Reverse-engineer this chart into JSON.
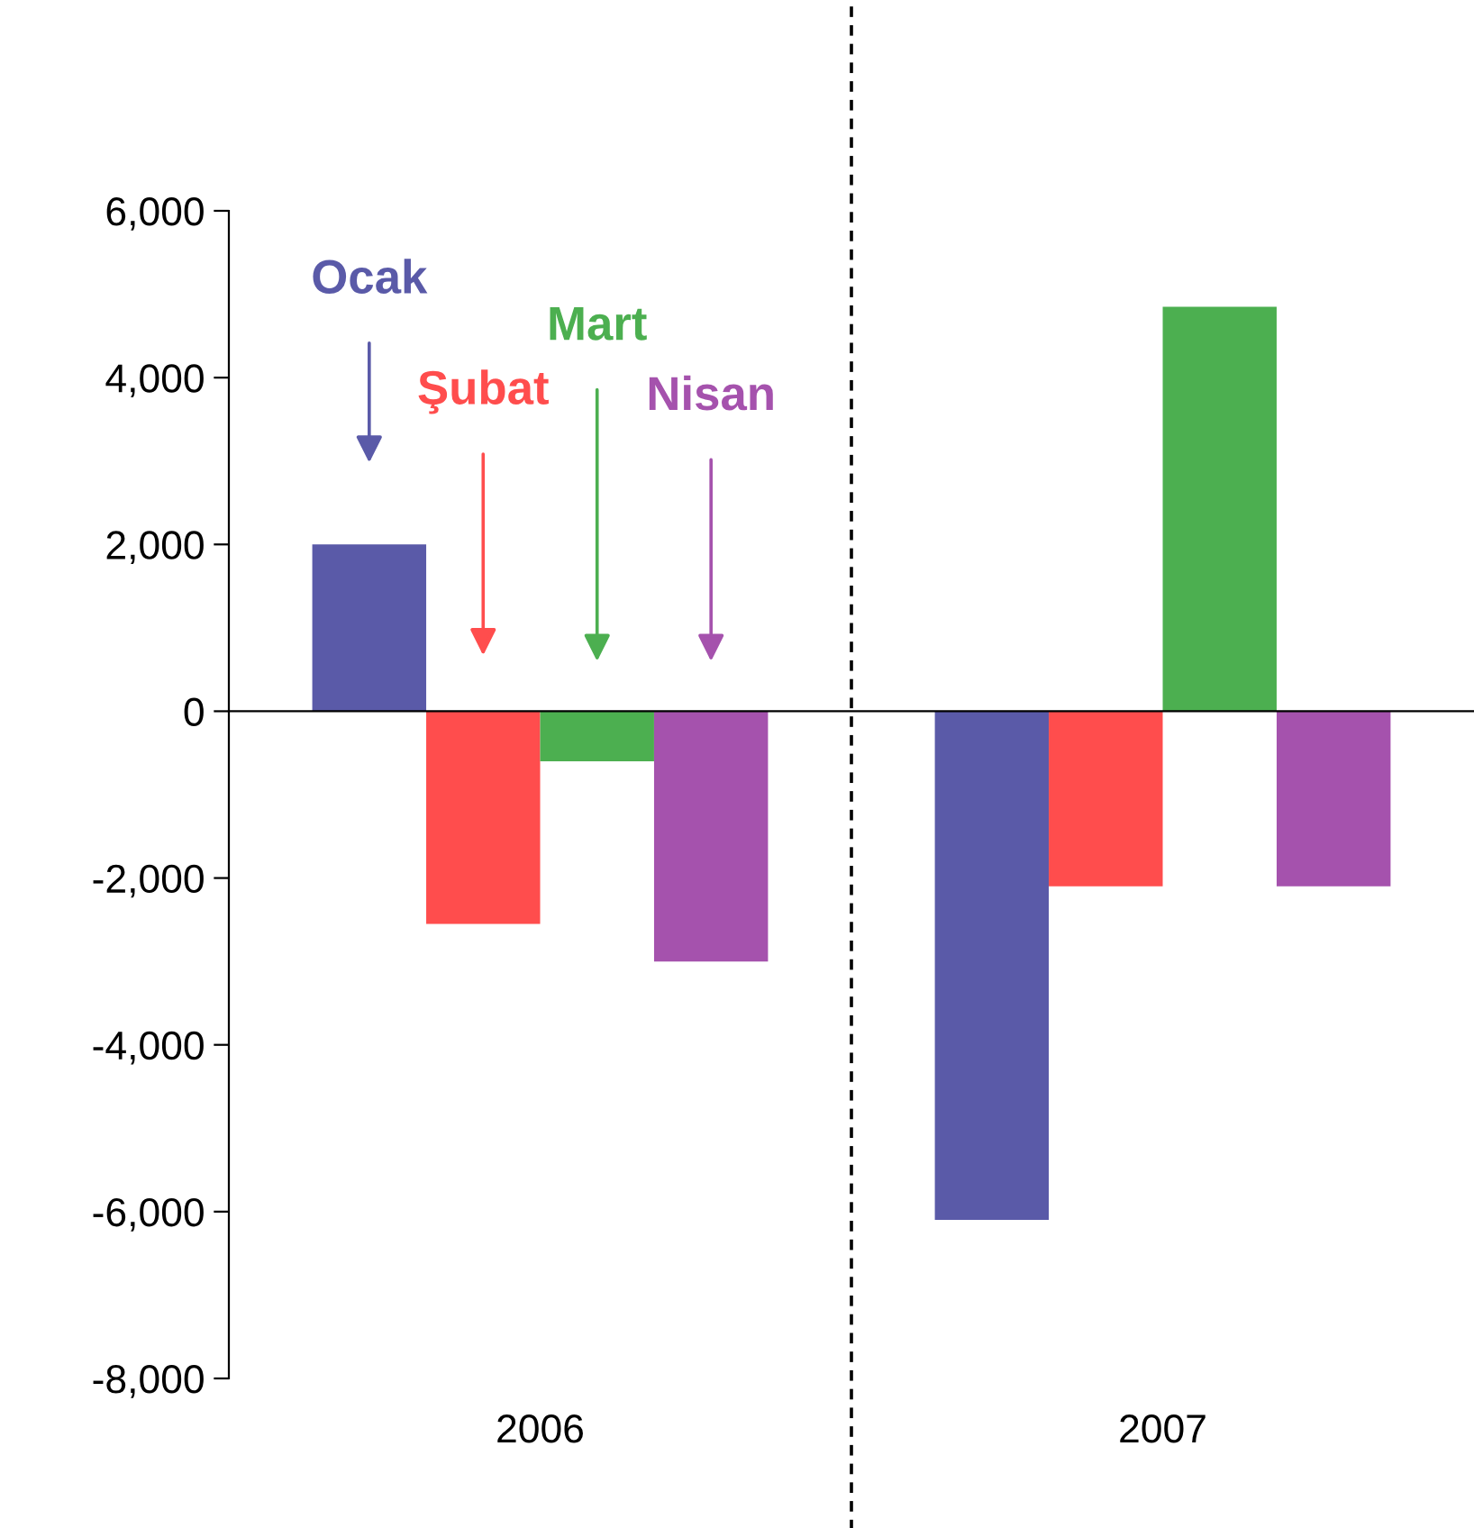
{
  "chart_data": {
    "type": "bar",
    "categories": [
      "2006",
      "2007"
    ],
    "series": [
      {
        "name": "Ocak",
        "color": "#5a5aa8",
        "values": [
          2000,
          -6100
        ]
      },
      {
        "name": "Şubat",
        "color": "#ff4d4d",
        "values": [
          -2550,
          -2100
        ]
      },
      {
        "name": "Mart",
        "color": "#4caf50",
        "values": [
          -600,
          4850
        ]
      },
      {
        "name": "Nisan",
        "color": "#a552ad",
        "values": [
          -3000,
          -2100
        ]
      }
    ],
    "ylim": [
      -8000,
      6000
    ],
    "yticks": [
      {
        "value": -8000,
        "label": "-8,000"
      },
      {
        "value": -6000,
        "label": "-6,000"
      },
      {
        "value": -4000,
        "label": "-4,000"
      },
      {
        "value": -2000,
        "label": "-2,000"
      },
      {
        "value": 0,
        "label": "0"
      },
      {
        "value": 2000,
        "label": "2,000"
      },
      {
        "value": 4000,
        "label": "4,000"
      },
      {
        "value": 6000,
        "label": "6,000"
      }
    ],
    "legend": false
  }
}
